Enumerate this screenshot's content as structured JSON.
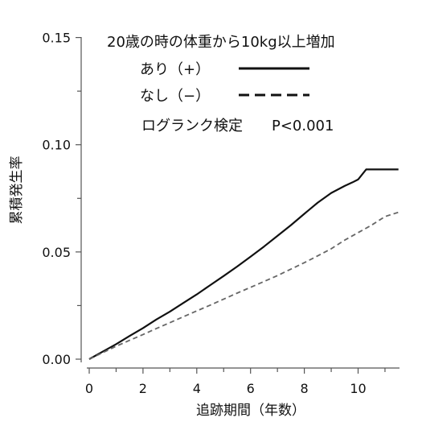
{
  "chart_data": {
    "type": "line",
    "xlabel": "追跡期間（年数）",
    "ylabel": "累積発生率",
    "xlim": [
      0,
      11.5
    ],
    "ylim": [
      0,
      0.15
    ],
    "x_ticks": [
      0,
      2,
      4,
      6,
      8,
      10
    ],
    "x_tick_labels": [
      "0",
      "2",
      "4",
      "6",
      "8",
      "10"
    ],
    "x_minor_ticks": [
      1,
      3,
      5,
      7,
      9,
      11
    ],
    "y_ticks": [
      0,
      0.05,
      0.1,
      0.15
    ],
    "y_tick_labels": [
      "0.00",
      "0.05",
      "0.10",
      "0.15"
    ],
    "y_minor_ticks": [
      0.025,
      0.075,
      0.125
    ],
    "legend": {
      "title": "20歳の時の体重から10kg以上増加",
      "placement": "top-right",
      "note": "ログランク検定　　P<0.001"
    },
    "series": [
      {
        "name": "あり（+）",
        "style": "solid",
        "color": "#111111",
        "points": [
          [
            0,
            0
          ],
          [
            0.5,
            0.0035
          ],
          [
            1,
            0.007
          ],
          [
            1.5,
            0.0108
          ],
          [
            2,
            0.0145
          ],
          [
            2.5,
            0.0185
          ],
          [
            3,
            0.0222
          ],
          [
            3.5,
            0.0262
          ],
          [
            4,
            0.0302
          ],
          [
            4.5,
            0.0345
          ],
          [
            5,
            0.0388
          ],
          [
            5.5,
            0.0432
          ],
          [
            6,
            0.0478
          ],
          [
            6.5,
            0.0525
          ],
          [
            7,
            0.0575
          ],
          [
            7.5,
            0.0625
          ],
          [
            8,
            0.0678
          ],
          [
            8.5,
            0.073
          ],
          [
            9,
            0.0775
          ],
          [
            9.5,
            0.0808
          ],
          [
            9.8,
            0.0825
          ],
          [
            10,
            0.0838
          ],
          [
            10.3,
            0.0885
          ],
          [
            11.5,
            0.0885
          ]
        ]
      },
      {
        "name": "なし（−）",
        "style": "dashed",
        "color": "#666666",
        "points": [
          [
            0,
            0
          ],
          [
            0.5,
            0.003
          ],
          [
            1,
            0.006
          ],
          [
            1.5,
            0.0088
          ],
          [
            2,
            0.0115
          ],
          [
            2.5,
            0.0143
          ],
          [
            3,
            0.017
          ],
          [
            3.5,
            0.0198
          ],
          [
            4,
            0.0225
          ],
          [
            4.5,
            0.0252
          ],
          [
            5,
            0.028
          ],
          [
            5.5,
            0.0308
          ],
          [
            6,
            0.0335
          ],
          [
            6.5,
            0.0362
          ],
          [
            7,
            0.039
          ],
          [
            7.5,
            0.042
          ],
          [
            8,
            0.045
          ],
          [
            8.5,
            0.0482
          ],
          [
            9,
            0.0515
          ],
          [
            9.5,
            0.0555
          ],
          [
            10,
            0.059
          ],
          [
            10.5,
            0.0625
          ],
          [
            11,
            0.0665
          ],
          [
            11.5,
            0.0685
          ]
        ]
      }
    ]
  }
}
